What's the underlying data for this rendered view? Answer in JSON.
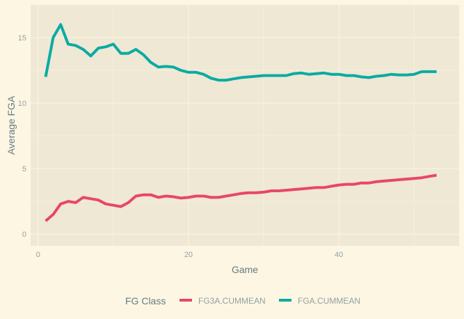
{
  "chart_data": {
    "type": "line",
    "title": "",
    "xlabel": "Game",
    "ylabel": "Average FGA",
    "xlim": [
      -1,
      56
    ],
    "ylim": [
      -0.9,
      17.5
    ],
    "xticks": [
      0,
      20,
      40
    ],
    "yticks": [
      0,
      5,
      10,
      15
    ],
    "grid": true,
    "legend": {
      "title": "FG Class",
      "position": "bottom"
    },
    "series": [
      {
        "name": "FG3A.CUMMEAN",
        "color": "#e8466a",
        "x": [
          1,
          2,
          3,
          4,
          5,
          6,
          7,
          8,
          9,
          10,
          11,
          12,
          13,
          14,
          15,
          16,
          17,
          18,
          19,
          20,
          21,
          22,
          23,
          24,
          25,
          26,
          27,
          28,
          29,
          30,
          31,
          32,
          33,
          34,
          35,
          36,
          37,
          38,
          39,
          40,
          41,
          42,
          43,
          44,
          45,
          46,
          47,
          48,
          49,
          50,
          51,
          52,
          53
        ],
        "values": [
          1.0,
          1.5,
          2.3,
          2.5,
          2.4,
          2.8,
          2.7,
          2.6,
          2.3,
          2.2,
          2.1,
          2.4,
          2.9,
          3.0,
          3.0,
          2.8,
          2.9,
          2.85,
          2.75,
          2.8,
          2.9,
          2.9,
          2.8,
          2.8,
          2.9,
          3.0,
          3.1,
          3.15,
          3.15,
          3.2,
          3.3,
          3.3,
          3.35,
          3.4,
          3.45,
          3.5,
          3.55,
          3.55,
          3.65,
          3.75,
          3.8,
          3.8,
          3.9,
          3.9,
          4.0,
          4.05,
          4.1,
          4.15,
          4.2,
          4.25,
          4.3,
          4.4,
          4.5
        ]
      },
      {
        "name": "FGA.CUMMEAN",
        "color": "#0aaba3",
        "x": [
          1,
          2,
          3,
          4,
          5,
          6,
          7,
          8,
          9,
          10,
          11,
          12,
          13,
          14,
          15,
          16,
          17,
          18,
          19,
          20,
          21,
          22,
          23,
          24,
          25,
          26,
          27,
          28,
          29,
          30,
          31,
          32,
          33,
          34,
          35,
          36,
          37,
          38,
          39,
          40,
          41,
          42,
          43,
          44,
          45,
          46,
          47,
          48,
          49,
          50,
          51,
          52,
          53
        ],
        "values": [
          12.0,
          15.0,
          16.0,
          14.5,
          14.4,
          14.1,
          13.6,
          14.2,
          14.3,
          14.5,
          13.8,
          13.8,
          14.1,
          13.7,
          13.1,
          12.75,
          12.8,
          12.75,
          12.5,
          12.35,
          12.35,
          12.2,
          11.9,
          11.75,
          11.75,
          11.85,
          11.95,
          12.0,
          12.05,
          12.1,
          12.1,
          12.1,
          12.1,
          12.25,
          12.3,
          12.2,
          12.25,
          12.3,
          12.2,
          12.2,
          12.1,
          12.1,
          12.0,
          11.95,
          12.05,
          12.1,
          12.2,
          12.15,
          12.15,
          12.2,
          12.4,
          12.4,
          12.4
        ]
      }
    ]
  }
}
